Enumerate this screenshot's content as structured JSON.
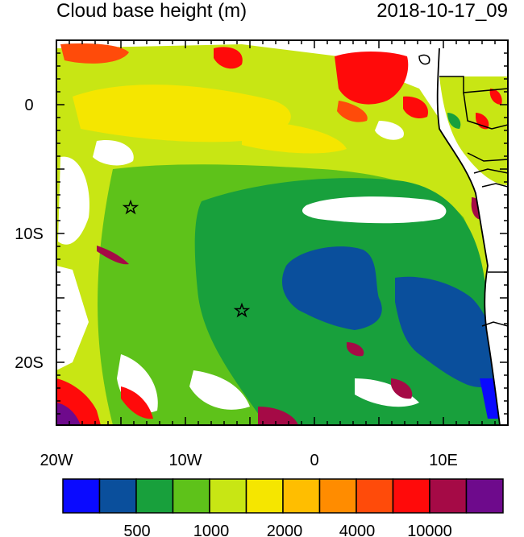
{
  "title": "Cloud base height (m)",
  "datetime": "2018-10-17_09",
  "map": {
    "lon_labels": [
      "20W",
      "10W",
      "0",
      "10E"
    ],
    "lat_labels": [
      "0",
      "10S",
      "20S"
    ],
    "markers": [
      {
        "name": "star-marker-1",
        "lon": -14.3,
        "lat": -8.0
      },
      {
        "name": "star-marker-2",
        "lon": -5.7,
        "lat": -16.0
      }
    ]
  },
  "colorbar": {
    "colors": [
      "#0a0aff",
      "#0a4f9c",
      "#18a03c",
      "#5ec21a",
      "#c8e614",
      "#f5e600",
      "#ffbe00",
      "#ff8c00",
      "#ff4b0a",
      "#ff0a0a",
      "#a50a46",
      "#6e0a8c"
    ],
    "labels": [
      "500",
      "1000",
      "2000",
      "4000",
      "10000"
    ]
  }
}
